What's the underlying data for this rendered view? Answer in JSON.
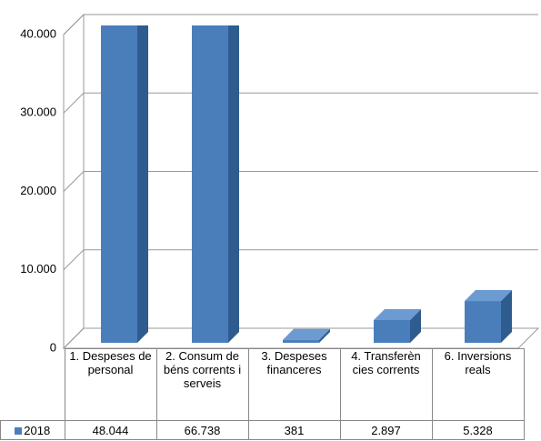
{
  "chart_data": {
    "type": "bar3d",
    "categories": [
      "1. Despeses de personal",
      "2. Consum de béns corrents i serveis",
      "3. Despeses financeres",
      "4. Transferèn cies corrents",
      "6. Inversions reals"
    ],
    "series": [
      {
        "name": "2018",
        "color": "#4a7ebb",
        "values": [
          48044,
          66738,
          381,
          2897,
          5328
        ],
        "value_labels": [
          "48.044",
          "66.738",
          "381",
          "2.897",
          "5.328"
        ]
      }
    ],
    "ylim": [
      0,
      40000
    ],
    "yticks": [
      0,
      {
        "value": 10000,
        "label": "10.000"
      },
      {
        "value": 20000,
        "label": "20.000"
      },
      {
        "value": 30000,
        "label": "30.000"
      },
      {
        "value": 40000,
        "label": "40.000"
      }
    ],
    "grid": true
  }
}
